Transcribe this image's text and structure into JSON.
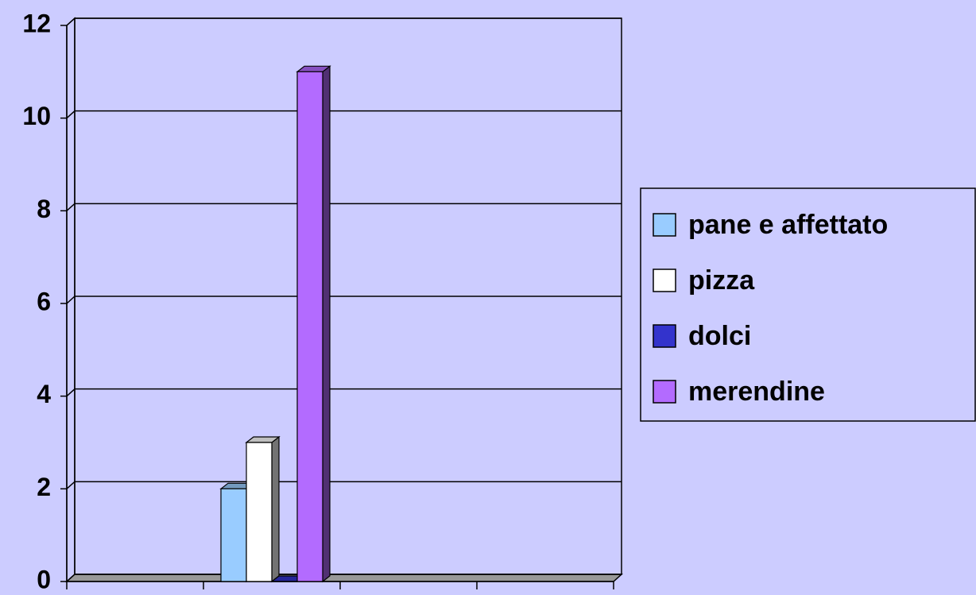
{
  "chart_data": {
    "type": "bar",
    "categories": [
      null,
      null,
      null,
      null
    ],
    "series": [
      {
        "name": "pane e affettato",
        "color": "#99ccff",
        "values": [
          null,
          2,
          null,
          null
        ]
      },
      {
        "name": "pizza",
        "color": "#ffffff",
        "values": [
          null,
          3,
          null,
          null
        ]
      },
      {
        "name": "dolci",
        "color": "#3333cc",
        "values": [
          null,
          0,
          null,
          null
        ]
      },
      {
        "name": "merendine",
        "color": "#b36bff",
        "values": [
          null,
          11,
          null,
          null
        ]
      }
    ],
    "ylim": [
      0,
      12
    ],
    "yticks": [
      0,
      2,
      4,
      6,
      8,
      10,
      12
    ],
    "grid": true,
    "legend": "right"
  }
}
